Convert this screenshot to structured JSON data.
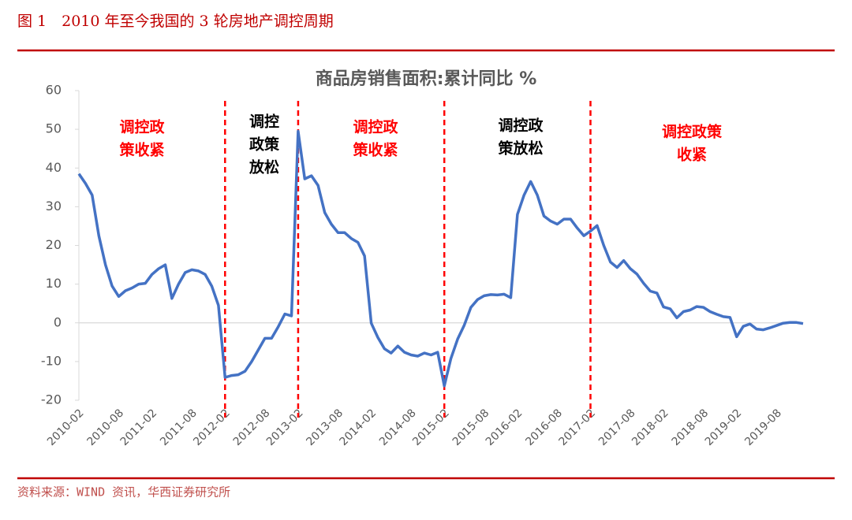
{
  "header": {
    "title": "图 1　2010 年至今我国的 3 轮房地产调控周期"
  },
  "chart_data": {
    "type": "line",
    "title": "商品房销售面积:累计同比 %",
    "categories": [
      "2010-02",
      null,
      null,
      null,
      null,
      null,
      "2010-08",
      null,
      null,
      null,
      null,
      "2011-02",
      null,
      null,
      null,
      null,
      null,
      "2011-08",
      null,
      null,
      null,
      null,
      "2012-02",
      null,
      null,
      null,
      null,
      null,
      "2012-08",
      null,
      null,
      null,
      null,
      "2013-02",
      null,
      null,
      null,
      null,
      null,
      "2013-08",
      null,
      null,
      null,
      null,
      "2014-02",
      null,
      null,
      null,
      null,
      null,
      "2014-08",
      null,
      null,
      null,
      null,
      "2015-02",
      null,
      null,
      null,
      null,
      null,
      "2015-08",
      null,
      null,
      null,
      null,
      "2016-02",
      null,
      null,
      null,
      null,
      null,
      "2016-08",
      null,
      null,
      null,
      null,
      "2017-02",
      null,
      null,
      null,
      null,
      null,
      "2017-08",
      null,
      null,
      null,
      null,
      "2018-02",
      null,
      null,
      null,
      null,
      null,
      "2018-08",
      null,
      null,
      null,
      null,
      "2019-02",
      null,
      null,
      null,
      null,
      null,
      "2019-08",
      null,
      null,
      null,
      null
    ],
    "series": [
      {
        "name": "商品房销售面积:累计同比",
        "color": "#4472c4",
        "values": [
          38.5,
          36,
          33,
          22.5,
          15,
          9.5,
          6.8,
          8.3,
          9,
          10,
          10.2,
          12.5,
          14,
          15,
          6.3,
          10,
          13,
          13.7,
          13.4,
          12.5,
          9.5,
          4.5,
          -14.1,
          -13.6,
          -13.4,
          -12.5,
          -10,
          -7,
          -4,
          -4,
          -1,
          2.3,
          1.8,
          49.5,
          37.2,
          38,
          35.5,
          28.5,
          25.5,
          23.3,
          23.3,
          21.8,
          20.8,
          17.3,
          -0.1,
          -3.8,
          -6.7,
          -7.8,
          -6,
          -7.6,
          -8.3,
          -8.6,
          -7.8,
          -8.3,
          -7.6,
          -16.3,
          -9.2,
          -4.2,
          -0.6,
          4,
          6,
          7,
          7.3,
          7.2,
          7.4,
          6.5,
          28,
          33,
          36.5,
          33,
          27.6,
          26.3,
          25.5,
          26.8,
          26.8,
          24.5,
          22.5,
          23.7,
          25.1,
          20,
          15.7,
          14.3,
          16.1,
          14,
          12.6,
          10.2,
          8.2,
          7.7,
          4.1,
          3.6,
          1.3,
          2.9,
          3.3,
          4.2,
          4,
          2.9,
          2.2,
          1.6,
          1.4,
          -3.6,
          -0.9,
          -0.3,
          -1.6,
          -1.8,
          -1.3,
          -0.7,
          -0.1,
          0.1,
          0.1,
          -0.2
        ]
      }
    ],
    "ylim": [
      -20,
      60
    ],
    "yticks": [
      -20,
      -10,
      0,
      10,
      20,
      30,
      40,
      50,
      60
    ],
    "annotations": [
      {
        "lines": [
          "调控政",
          "策收紧"
        ],
        "color": "#ff0000"
      },
      {
        "lines": [
          "调控",
          "政策",
          "放松"
        ],
        "color": "#000000"
      },
      {
        "lines": [
          "调控政",
          "策收紧"
        ],
        "color": "#ff0000"
      },
      {
        "lines": [
          "调控政",
          "策放松"
        ],
        "color": "#000000"
      },
      {
        "lines": [
          "调控政策",
          "收紧"
        ],
        "color": "#ff0000"
      }
    ],
    "divider_color": "#ff0000"
  },
  "footer": {
    "source": "资料来源：WIND 资讯，华西证券研究所"
  }
}
